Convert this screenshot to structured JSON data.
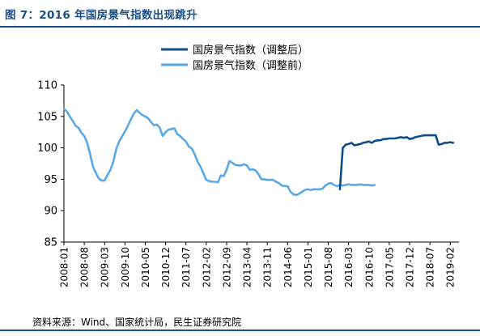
{
  "figure": {
    "title": "图 7：2016 年国房景气指数出现跳升",
    "source": "资料来源：Wind、国家统计局，民生证券研究院"
  },
  "colors": {
    "brand": "#1a4f86",
    "series_adjusted": "#0d4d8a",
    "series_pre_adjust": "#5aa9e6"
  },
  "chart_data": {
    "type": "line",
    "title": "",
    "xlabel": "",
    "ylabel": "",
    "ylim": [
      85,
      110
    ],
    "yticks": [
      85,
      90,
      95,
      100,
      105,
      110
    ],
    "xlim": [
      "2008-01",
      "2019-05"
    ],
    "xticks": [
      "2008-01",
      "2008-08",
      "2009-03",
      "2009-10",
      "2010-05",
      "2010-12",
      "2011-07",
      "2012-02",
      "2012-09",
      "2013-04",
      "2013-11",
      "2014-06",
      "2015-01",
      "2015-08",
      "2016-03",
      "2016-10",
      "2017-05",
      "2017-12",
      "2018-07",
      "2019-02"
    ],
    "grid": false,
    "legend_position": "top-center",
    "series": [
      {
        "name": "国房景气指数（调整后）",
        "color": "#0d4d8a",
        "x": [
          "2015-12",
          "2016-01",
          "2016-02",
          "2016-03",
          "2016-04",
          "2016-05",
          "2016-06",
          "2016-07",
          "2016-08",
          "2016-09",
          "2016-10",
          "2016-11",
          "2016-12",
          "2017-01",
          "2017-02",
          "2017-03",
          "2017-04",
          "2017-05",
          "2017-06",
          "2017-07",
          "2017-08",
          "2017-09",
          "2017-10",
          "2017-11",
          "2017-12",
          "2018-01",
          "2018-02",
          "2018-03",
          "2018-04",
          "2018-05",
          "2018-06",
          "2018-07",
          "2018-08",
          "2018-09",
          "2018-10",
          "2018-11",
          "2018-12",
          "2019-01",
          "2019-02",
          "2019-03"
        ],
        "values": [
          93.4,
          100.0,
          100.5,
          100.6,
          100.8,
          100.4,
          100.5,
          100.6,
          100.8,
          100.9,
          101.0,
          100.8,
          101.1,
          101.2,
          101.2,
          101.4,
          101.4,
          101.5,
          101.5,
          101.5,
          101.6,
          101.7,
          101.6,
          101.7,
          101.4,
          101.5,
          101.7,
          101.8,
          101.9,
          102.0,
          102.0,
          102.0,
          102.0,
          102.0,
          100.5,
          100.6,
          100.8,
          100.8,
          100.9,
          100.8
        ]
      },
      {
        "name": "国房景气指数（调整前）",
        "color": "#5aa9e6",
        "x": [
          "2008-01",
          "2008-02",
          "2008-03",
          "2008-04",
          "2008-05",
          "2008-06",
          "2008-07",
          "2008-08",
          "2008-09",
          "2008-10",
          "2008-11",
          "2008-12",
          "2009-01",
          "2009-02",
          "2009-03",
          "2009-04",
          "2009-05",
          "2009-06",
          "2009-07",
          "2009-08",
          "2009-09",
          "2009-10",
          "2009-11",
          "2009-12",
          "2010-01",
          "2010-02",
          "2010-03",
          "2010-04",
          "2010-05",
          "2010-06",
          "2010-07",
          "2010-08",
          "2010-09",
          "2010-10",
          "2010-11",
          "2010-12",
          "2011-01",
          "2011-02",
          "2011-03",
          "2011-04",
          "2011-05",
          "2011-06",
          "2011-07",
          "2011-08",
          "2011-09",
          "2011-10",
          "2011-11",
          "2011-12",
          "2012-01",
          "2012-02",
          "2012-03",
          "2012-04",
          "2012-05",
          "2012-06",
          "2012-07",
          "2012-08",
          "2012-09",
          "2012-10",
          "2012-11",
          "2012-12",
          "2013-01",
          "2013-02",
          "2013-03",
          "2013-04",
          "2013-05",
          "2013-06",
          "2013-07",
          "2013-08",
          "2013-09",
          "2013-10",
          "2013-11",
          "2013-12",
          "2014-01",
          "2014-02",
          "2014-03",
          "2014-04",
          "2014-05",
          "2014-06",
          "2014-07",
          "2014-08",
          "2014-09",
          "2014-10",
          "2014-11",
          "2014-12",
          "2015-01",
          "2015-02",
          "2015-03",
          "2015-04",
          "2015-05",
          "2015-06",
          "2015-07",
          "2015-08",
          "2015-09",
          "2015-10",
          "2015-11",
          "2015-12",
          "2016-01",
          "2016-02",
          "2016-03",
          "2016-04",
          "2016-05",
          "2016-06",
          "2016-07",
          "2016-08",
          "2016-09",
          "2016-10",
          "2016-11",
          "2016-12"
        ],
        "values": [
          106.2,
          105.8,
          105.0,
          104.3,
          103.5,
          103.2,
          102.4,
          101.9,
          100.8,
          99.0,
          97.0,
          96.0,
          95.1,
          94.8,
          94.8,
          95.7,
          96.5,
          97.8,
          99.8,
          101.0,
          101.8,
          102.6,
          103.5,
          104.5,
          105.4,
          106.0,
          105.6,
          105.2,
          105.0,
          104.7,
          104.1,
          103.6,
          103.7,
          103.2,
          101.9,
          102.5,
          102.9,
          103.0,
          103.1,
          102.2,
          101.9,
          101.4,
          101.0,
          100.2,
          99.9,
          99.0,
          97.8,
          97.0,
          96.0,
          94.9,
          94.7,
          94.6,
          94.6,
          94.5,
          95.6,
          95.5,
          96.5,
          97.9,
          97.6,
          97.3,
          97.2,
          97.2,
          97.4,
          97.2,
          96.5,
          96.6,
          96.4,
          95.8,
          95.0,
          95.0,
          94.9,
          94.9,
          94.9,
          94.6,
          94.4,
          94.0,
          93.9,
          93.9,
          93.0,
          92.6,
          92.5,
          92.7,
          93.0,
          93.3,
          93.4,
          93.3,
          93.4,
          93.4,
          93.4,
          93.5,
          94.0,
          94.3,
          94.4,
          94.1,
          93.9,
          94.1,
          94.0,
          94.1,
          94.2,
          94.1,
          94.1,
          94.1,
          94.2,
          94.1,
          94.1,
          94.1,
          94.0,
          94.1
        ]
      }
    ]
  }
}
